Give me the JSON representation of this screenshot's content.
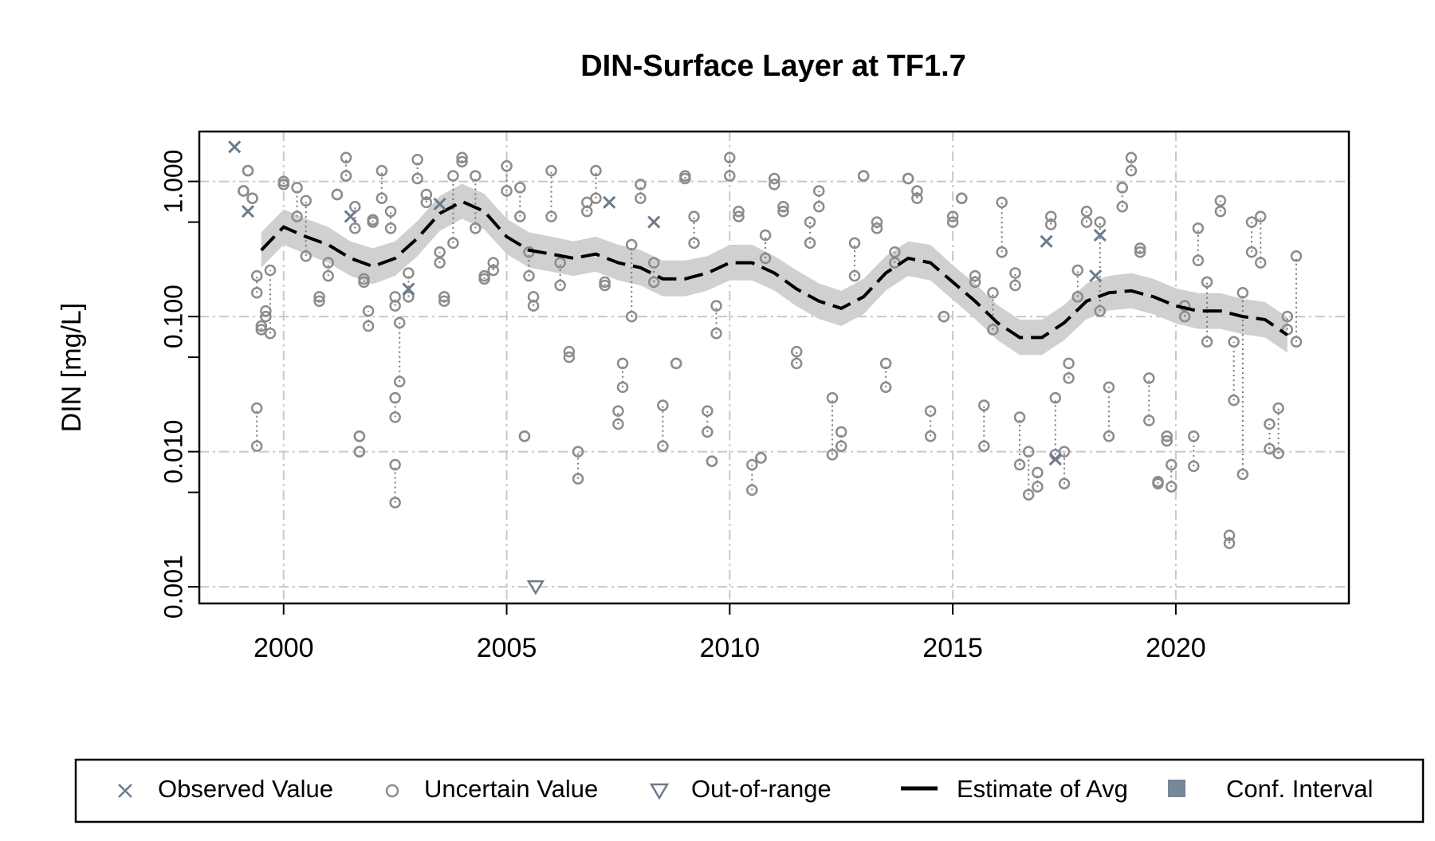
{
  "chart_data": {
    "type": "scatter",
    "title": "DIN-Surface Layer at TF1.7",
    "y_label": "DIN [mg/L]",
    "log_y": true,
    "grid": true,
    "xlim": [
      1998.11,
      2023.88
    ],
    "ylim": [
      0.000753,
      2.34
    ],
    "xticks": [
      2000,
      2005,
      2010,
      2015,
      2020
    ],
    "yticks": [
      {
        "value": 0.001,
        "label": "0.001"
      },
      {
        "value": 0.01,
        "label": "0.010"
      },
      {
        "value": 0.1,
        "label": "0.100"
      },
      {
        "value": 1,
        "label": "1.000"
      }
    ],
    "minor_yticks": [
      0.005,
      0.05,
      0.5
    ],
    "legend_position": "bottom",
    "observed": {
      "name": "Observed Value",
      "color": "#6c7b8b",
      "x": [
        1998.9,
        1999.2,
        2001.5,
        2002.8,
        2003.5,
        2007.3,
        2008.3,
        2017.1,
        2017.3,
        2018.2,
        2018.3
      ],
      "values": [
        1.8,
        0.6,
        0.55,
        0.16,
        0.68,
        0.7,
        0.5,
        0.36,
        0.0088,
        0.2,
        0.4
      ]
    },
    "uncertain": {
      "name": "Uncertain Value",
      "color": "#8c8c8c",
      "x": [
        1999.1,
        1999.2,
        1999.3,
        1999.4,
        1999.5,
        1999.6,
        1999.7,
        1999.4,
        2000.0,
        2000.3,
        2000.5,
        2000.8,
        2001.0,
        2001.2,
        2001.4,
        2001.6,
        2001.8,
        2001.7,
        2001.9,
        2001.7,
        2002.0,
        2002.2,
        2002.4,
        2002.5,
        2002.5,
        2002.5,
        2002.6,
        2002.8,
        2003.0,
        2003.2,
        2003.5,
        2003.6,
        2003.8,
        2004.0,
        2004.3,
        2004.5,
        2004.7,
        2005.0,
        2005.3,
        2005.4,
        2005.5,
        2005.6,
        2006.0,
        2006.2,
        2006.4,
        2006.6,
        2006.8,
        2007.0,
        2007.2,
        2007.5,
        2007.6,
        2007.8,
        2008.0,
        2008.3,
        2008.5,
        2008.8,
        2009.0,
        2009.2,
        2009.5,
        2009.6,
        2009.7,
        2010.0,
        2010.2,
        2010.5,
        2010.7,
        2010.8,
        2011.0,
        2011.2,
        2011.5,
        2011.8,
        2012.0,
        2012.3,
        2012.5,
        2012.8,
        2013.0,
        2013.3,
        2013.5,
        2013.7,
        2014.0,
        2014.2,
        2014.5,
        2014.8,
        2015.0,
        2015.2,
        2015.5,
        2015.7,
        2015.9,
        2016.1,
        2016.4,
        2016.5,
        2016.7,
        2016.9,
        2017.2,
        2017.3,
        2017.5,
        2017.6,
        2017.8,
        2018.0,
        2018.3,
        2018.5,
        2018.8,
        2019.0,
        2019.2,
        2019.4,
        2019.6,
        2019.8,
        2019.9,
        2020.2,
        2020.4,
        2020.5,
        2020.7,
        2021.0,
        2021.2,
        2021.3,
        2021.5,
        2021.7,
        2021.9,
        2022.1,
        2022.3,
        2022.5,
        2022.7
      ],
      "low": [
        0.85,
        1.2,
        0.75,
        0.15,
        0.08,
        0.1,
        0.075,
        0.011,
        0.95,
        0.55,
        0.28,
        0.13,
        0.2,
        0.8,
        1.1,
        0.45,
        0.18,
        0.013,
        0.085,
        0.01,
        0.5,
        0.75,
        0.45,
        0.12,
        0.0042,
        0.018,
        0.033,
        0.14,
        1.05,
        0.7,
        0.25,
        0.13,
        0.35,
        1.4,
        0.45,
        0.19,
        0.22,
        0.85,
        0.55,
        0.013,
        0.2,
        0.12,
        0.55,
        0.17,
        0.05,
        0.0063,
        0.6,
        0.75,
        0.17,
        0.016,
        0.03,
        0.1,
        0.75,
        0.18,
        0.011,
        0.045,
        1.05,
        0.35,
        0.014,
        0.0085,
        0.075,
        1.1,
        0.55,
        0.0052,
        0.009,
        0.27,
        0.95,
        0.6,
        0.045,
        0.35,
        0.65,
        0.0095,
        0.011,
        0.2,
        1.1,
        0.45,
        0.03,
        0.25,
        1.05,
        0.75,
        0.013,
        0.1,
        0.5,
        0.75,
        0.18,
        0.011,
        0.08,
        0.3,
        0.17,
        0.008,
        0.0048,
        0.0055,
        0.48,
        0.0095,
        0.0058,
        0.035,
        0.14,
        0.5,
        0.11,
        0.013,
        0.65,
        1.2,
        0.3,
        0.017,
        0.0058,
        0.012,
        0.0055,
        0.1,
        0.0078,
        0.26,
        0.065,
        0.6,
        0.0021,
        0.024,
        0.0068,
        0.3,
        0.25,
        0.0105,
        0.0097,
        0.08,
        0.065
      ],
      "high": [
        0.85,
        1.2,
        0.75,
        0.2,
        0.085,
        0.11,
        0.22,
        0.021,
        1.0,
        0.9,
        0.72,
        0.14,
        0.25,
        0.8,
        1.5,
        0.65,
        0.19,
        0.013,
        0.11,
        0.01,
        0.52,
        1.2,
        0.6,
        0.14,
        0.008,
        0.025,
        0.09,
        0.21,
        1.45,
        0.8,
        0.3,
        0.14,
        1.1,
        1.5,
        1.1,
        0.2,
        0.25,
        1.3,
        0.9,
        0.013,
        0.3,
        0.14,
        1.2,
        0.25,
        0.055,
        0.01,
        0.7,
        1.2,
        0.18,
        0.02,
        0.045,
        0.34,
        0.95,
        0.25,
        0.022,
        0.045,
        1.1,
        0.55,
        0.02,
        0.0085,
        0.12,
        1.5,
        0.6,
        0.008,
        0.009,
        0.4,
        1.05,
        0.65,
        0.055,
        0.5,
        0.85,
        0.025,
        0.014,
        0.35,
        1.1,
        0.5,
        0.045,
        0.3,
        1.05,
        0.85,
        0.02,
        0.1,
        0.55,
        0.75,
        0.2,
        0.022,
        0.15,
        0.7,
        0.21,
        0.018,
        0.01,
        0.007,
        0.55,
        0.025,
        0.01,
        0.045,
        0.22,
        0.6,
        0.5,
        0.03,
        0.9,
        1.5,
        0.32,
        0.035,
        0.006,
        0.013,
        0.008,
        0.12,
        0.013,
        0.45,
        0.18,
        0.72,
        0.0024,
        0.065,
        0.15,
        0.5,
        0.55,
        0.016,
        0.021,
        0.1,
        0.28
      ]
    },
    "out_of_range": {
      "name": "Out-of-range",
      "color": "#6c7b8b",
      "x": [
        2005.65
      ],
      "values": [
        0.001
      ]
    },
    "estimate": {
      "name": "Estimate of Avg",
      "color": "#000000",
      "x": [
        1999.5,
        2000,
        2000.5,
        2001,
        2001.5,
        2002,
        2002.5,
        2003,
        2003.5,
        2004,
        2004.5,
        2005,
        2005.5,
        2006,
        2006.5,
        2007,
        2007.5,
        2008,
        2008.5,
        2009,
        2009.5,
        2010,
        2010.5,
        2011,
        2011.5,
        2012,
        2012.5,
        2013,
        2013.5,
        2014,
        2014.5,
        2015,
        2015.5,
        2016,
        2016.5,
        2017,
        2017.5,
        2018,
        2018.5,
        2019,
        2019.5,
        2020,
        2020.5,
        2021,
        2021.5,
        2022,
        2022.5
      ],
      "values": [
        0.31,
        0.46,
        0.39,
        0.34,
        0.27,
        0.235,
        0.27,
        0.38,
        0.58,
        0.71,
        0.6,
        0.39,
        0.31,
        0.29,
        0.27,
        0.29,
        0.25,
        0.23,
        0.19,
        0.19,
        0.21,
        0.25,
        0.25,
        0.21,
        0.16,
        0.13,
        0.115,
        0.14,
        0.21,
        0.27,
        0.25,
        0.18,
        0.13,
        0.09,
        0.07,
        0.07,
        0.09,
        0.13,
        0.15,
        0.155,
        0.14,
        0.12,
        0.11,
        0.11,
        0.1,
        0.095,
        0.073
      ]
    },
    "conf_interval": {
      "name": "Conf. Interval",
      "color": "#d0d0d0",
      "legend_color": "#778899",
      "lower": [
        0.23,
        0.34,
        0.29,
        0.25,
        0.2,
        0.174,
        0.2,
        0.28,
        0.43,
        0.53,
        0.44,
        0.29,
        0.23,
        0.215,
        0.2,
        0.215,
        0.185,
        0.17,
        0.141,
        0.141,
        0.156,
        0.185,
        0.185,
        0.156,
        0.119,
        0.096,
        0.085,
        0.104,
        0.156,
        0.2,
        0.185,
        0.133,
        0.096,
        0.067,
        0.052,
        0.052,
        0.067,
        0.096,
        0.111,
        0.115,
        0.104,
        0.089,
        0.081,
        0.081,
        0.074,
        0.07,
        0.054
      ],
      "upper": [
        0.42,
        0.62,
        0.53,
        0.46,
        0.36,
        0.32,
        0.36,
        0.51,
        0.78,
        0.96,
        0.81,
        0.53,
        0.42,
        0.39,
        0.36,
        0.39,
        0.34,
        0.31,
        0.26,
        0.26,
        0.28,
        0.34,
        0.34,
        0.28,
        0.22,
        0.176,
        0.155,
        0.19,
        0.28,
        0.36,
        0.34,
        0.24,
        0.176,
        0.122,
        0.095,
        0.095,
        0.122,
        0.176,
        0.2,
        0.21,
        0.19,
        0.162,
        0.149,
        0.149,
        0.135,
        0.128,
        0.099
      ]
    }
  }
}
